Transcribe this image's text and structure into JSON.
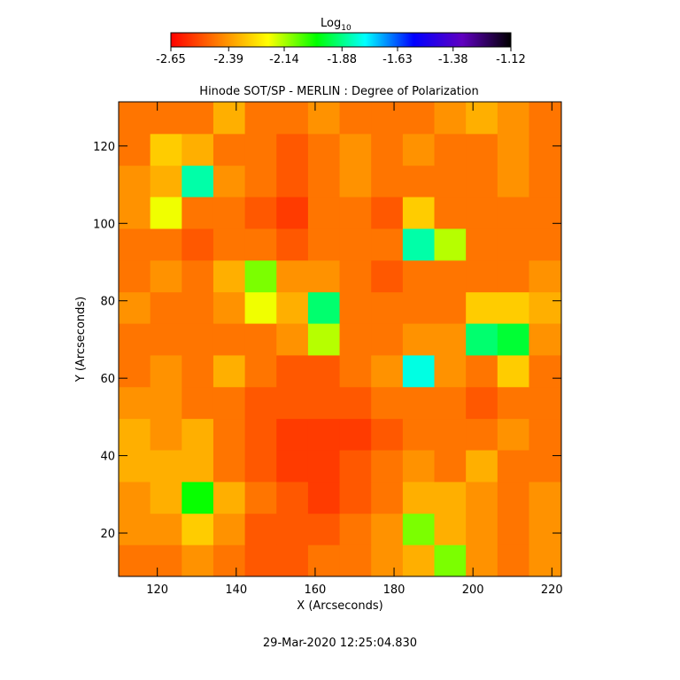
{
  "chart_data": {
    "type": "heatmap",
    "title": "Hinode SOT/SP - MERLIN : Degree of Polarization",
    "xlabel": "X (Arcseconds)",
    "ylabel": "Y (Arcseconds)",
    "footer": "29-Mar-2020 12:25:04.830",
    "colorbar_label": "Log",
    "colorbar_label_sub": "10",
    "colorbar_lim": [
      -2.65,
      -1.12
    ],
    "colorbar_ticks": [
      -2.65,
      -2.39,
      -2.14,
      -1.88,
      -1.63,
      -1.38,
      -1.12
    ],
    "colormap": [
      "#ff0000",
      "#ff8000",
      "#ffff00",
      "#00ff00",
      "#00ffff",
      "#0000ff",
      "#6000c0",
      "#000000"
    ],
    "xlim": [
      110.2,
      222.4
    ],
    "ylim": [
      8.8,
      131.4
    ],
    "xticks": [
      120,
      140,
      160,
      180,
      200,
      220
    ],
    "yticks": [
      20,
      40,
      60,
      80,
      100,
      120
    ],
    "xbins": [
      110.2,
      118.2,
      126.2,
      134.2,
      142.2,
      150.2,
      158.2,
      166.2,
      174.2,
      182.2,
      190.2,
      198.2,
      206.2,
      214.2,
      222.4
    ],
    "ybins": [
      8.8,
      17,
      25.1,
      33.3,
      41.5,
      49.6,
      57.8,
      66,
      74.2,
      82.3,
      90.5,
      98.7,
      106.9,
      115,
      123.2,
      131.4
    ],
    "z": [
      [
        -2.45,
        -2.45,
        -2.4,
        -2.45,
        -2.5,
        -2.5,
        -2.45,
        -2.45,
        -2.4,
        -2.35,
        -2.1,
        -2.4,
        -2.45,
        -2.4
      ],
      [
        -2.4,
        -2.4,
        -2.3,
        -2.4,
        -2.5,
        -2.5,
        -2.5,
        -2.45,
        -2.4,
        -2.1,
        -2.35,
        -2.4,
        -2.45,
        -2.4
      ],
      [
        -2.4,
        -2.35,
        -2.0,
        -2.35,
        -2.45,
        -2.5,
        -2.55,
        -2.5,
        -2.45,
        -2.35,
        -2.35,
        -2.4,
        -2.45,
        -2.4
      ],
      [
        -2.35,
        -2.35,
        -2.35,
        -2.45,
        -2.5,
        -2.55,
        -2.55,
        -2.5,
        -2.45,
        -2.4,
        -2.45,
        -2.35,
        -2.45,
        -2.45
      ],
      [
        -2.35,
        -2.4,
        -2.35,
        -2.45,
        -2.5,
        -2.55,
        -2.55,
        -2.55,
        -2.5,
        -2.45,
        -2.45,
        -2.45,
        -2.4,
        -2.45
      ],
      [
        -2.4,
        -2.4,
        -2.45,
        -2.45,
        -2.5,
        -2.5,
        -2.5,
        -2.5,
        -2.45,
        -2.45,
        -2.45,
        -2.5,
        -2.45,
        -2.45
      ],
      [
        -2.45,
        -2.4,
        -2.45,
        -2.35,
        -2.45,
        -2.5,
        -2.5,
        -2.45,
        -2.4,
        -1.8,
        -2.4,
        -2.45,
        -2.3,
        -2.45
      ],
      [
        -2.45,
        -2.45,
        -2.45,
        -2.45,
        -2.45,
        -2.4,
        -2.15,
        -2.45,
        -2.45,
        -2.4,
        -2.4,
        -1.9,
        -1.95,
        -2.4
      ],
      [
        -2.4,
        -2.45,
        -2.45,
        -2.4,
        -2.2,
        -2.35,
        -1.9,
        -2.45,
        -2.45,
        -2.45,
        -2.45,
        -2.3,
        -2.3,
        -2.35
      ],
      [
        -2.45,
        -2.4,
        -2.45,
        -2.35,
        -2.1,
        -2.4,
        -2.4,
        -2.45,
        -2.5,
        -2.45,
        -2.45,
        -2.45,
        -2.45,
        -2.4
      ],
      [
        -2.45,
        -2.45,
        -2.5,
        -2.45,
        -2.45,
        -2.5,
        -2.45,
        -2.45,
        -2.45,
        -1.85,
        -2.15,
        -2.45,
        -2.45,
        -2.45
      ],
      [
        -2.4,
        -2.2,
        -2.45,
        -2.45,
        -2.5,
        -2.55,
        -2.45,
        -2.45,
        -2.5,
        -2.3,
        -2.45,
        -2.45,
        -2.45,
        -2.45
      ],
      [
        -2.4,
        -2.35,
        -1.85,
        -2.4,
        -2.45,
        -2.5,
        -2.45,
        -2.4,
        -2.45,
        -2.45,
        -2.45,
        -2.45,
        -2.4,
        -2.45
      ],
      [
        -2.45,
        -2.3,
        -2.35,
        -2.45,
        -2.45,
        -2.5,
        -2.45,
        -2.4,
        -2.45,
        -2.4,
        -2.45,
        -2.45,
        -2.4,
        -2.45
      ],
      [
        -2.45,
        -2.45,
        -2.45,
        -2.35,
        -2.45,
        -2.45,
        -2.4,
        -2.45,
        -2.45,
        -2.45,
        -2.4,
        -2.35,
        -2.4,
        -2.45
      ]
    ]
  }
}
